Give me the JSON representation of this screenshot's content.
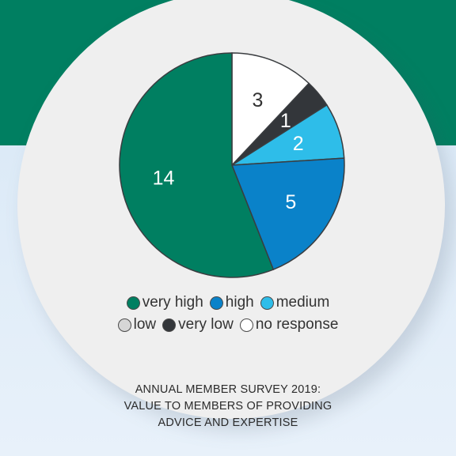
{
  "chart_data": {
    "type": "pie",
    "title": "ANNUAL MEMBER SURVEY 2019: VALUE TO MEMBERS OF PROVIDING ADVICE AND EXPERTISE",
    "start_order": [
      "no response",
      "very low",
      "medium",
      "high",
      "very high"
    ],
    "slices": [
      {
        "label": "no response",
        "value": 3,
        "color": "#ffffff",
        "text_color": "#333333"
      },
      {
        "label": "very low",
        "value": 1,
        "color": "#33363a",
        "text_color": "#ffffff"
      },
      {
        "label": "medium",
        "value": 2,
        "color": "#2ebde9",
        "text_color": "#ffffff"
      },
      {
        "label": "high",
        "value": 5,
        "color": "#0a82c9",
        "text_color": "#ffffff"
      },
      {
        "label": "very high",
        "value": 14,
        "color": "#007f61",
        "text_color": "#ffffff"
      }
    ],
    "legend": [
      {
        "label": "very high",
        "color": "#007f61"
      },
      {
        "label": "high",
        "color": "#0a82c9"
      },
      {
        "label": "medium",
        "color": "#2ebde9"
      },
      {
        "label": "low",
        "color": "#d6d6d6"
      },
      {
        "label": "very low",
        "color": "#33363a"
      },
      {
        "label": "no response",
        "color": "#ffffff"
      }
    ]
  },
  "caption": {
    "line1": "ANNUAL MEMBER SURVEY 2019:",
    "line2": "VALUE TO MEMBERS OF PROVIDING",
    "line3": "ADVICE AND EXPERTISE"
  },
  "colors": {
    "header_band": "#007f61",
    "background": "#e3eef8",
    "circle": "#efefef"
  }
}
